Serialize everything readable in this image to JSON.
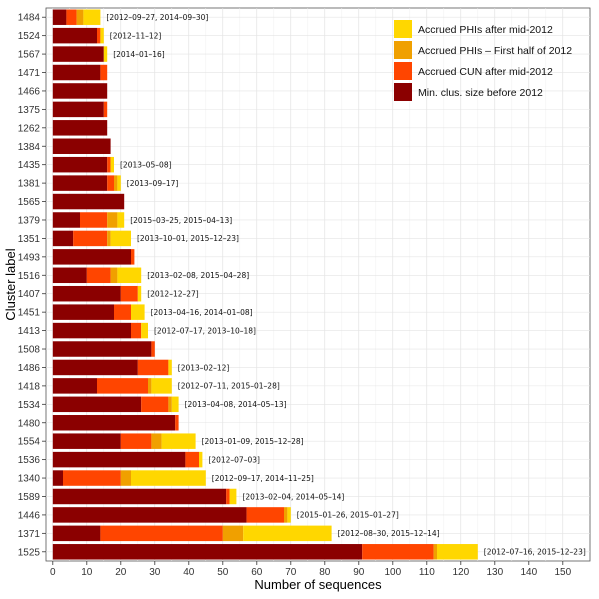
{
  "chart_data": {
    "type": "bar",
    "orientation": "horizontal",
    "stacked": true,
    "xlabel": "Number of sequences",
    "ylabel": "Cluster label",
    "xlim": [
      -2,
      158
    ],
    "xticks": [
      0,
      10,
      20,
      30,
      40,
      50,
      60,
      70,
      80,
      90,
      100,
      110,
      120,
      130,
      140,
      150
    ],
    "grid": true,
    "legend_position": "top-right",
    "series": [
      {
        "name": "Min. clus. size before 2012",
        "color": "#8B0000"
      },
      {
        "name": "Accrued CUN after mid-2012",
        "color": "#FF4500"
      },
      {
        "name": "Accrued PHIs – First half of 2012",
        "color": "#F0A000"
      },
      {
        "name": "Accrued PHIs after mid-2012",
        "color": "#FFD700"
      }
    ],
    "legend_order": [
      3,
      2,
      1,
      0
    ],
    "rows": [
      {
        "label": "1484",
        "values": [
          4,
          3,
          2,
          5
        ],
        "dates": "[2012–09–27, 2014–09–30]"
      },
      {
        "label": "1524",
        "values": [
          13,
          1,
          0,
          1
        ],
        "dates": "[2012–11–12]"
      },
      {
        "label": "1567",
        "values": [
          15,
          0,
          0,
          1
        ],
        "dates": "[2014–01–16]"
      },
      {
        "label": "1471",
        "values": [
          14,
          2,
          0,
          0
        ],
        "dates": ""
      },
      {
        "label": "1466",
        "values": [
          16,
          0,
          0,
          0
        ],
        "dates": ""
      },
      {
        "label": "1375",
        "values": [
          15,
          1,
          0,
          0
        ],
        "dates": ""
      },
      {
        "label": "1262",
        "values": [
          16,
          0,
          0,
          0
        ],
        "dates": ""
      },
      {
        "label": "1384",
        "values": [
          17,
          0,
          0,
          0
        ],
        "dates": ""
      },
      {
        "label": "1435",
        "values": [
          16,
          1,
          0,
          1
        ],
        "dates": "[2013–05–08]"
      },
      {
        "label": "1381",
        "values": [
          16,
          2,
          1,
          1
        ],
        "dates": "[2013–09–17]"
      },
      {
        "label": "1565",
        "values": [
          21,
          0,
          0,
          0
        ],
        "dates": ""
      },
      {
        "label": "1379",
        "values": [
          8,
          8,
          3,
          2
        ],
        "dates": "[2015–03–25, 2015–04–13]"
      },
      {
        "label": "1351",
        "values": [
          6,
          10,
          1,
          6
        ],
        "dates": "[2013–10–01, 2015–12–23]"
      },
      {
        "label": "1493",
        "values": [
          23,
          1,
          0,
          0
        ],
        "dates": ""
      },
      {
        "label": "1516",
        "values": [
          10,
          7,
          2,
          7
        ],
        "dates": "[2013–02–08, 2015–04–28]"
      },
      {
        "label": "1407",
        "values": [
          20,
          5,
          0,
          1
        ],
        "dates": "[2012–12–27]"
      },
      {
        "label": "1451",
        "values": [
          18,
          5,
          0,
          4
        ],
        "dates": "[2013–04–16, 2014–01–08]"
      },
      {
        "label": "1413",
        "values": [
          23,
          3,
          0,
          2
        ],
        "dates": "[2012–07–17, 2013–10–18]"
      },
      {
        "label": "1508",
        "values": [
          29,
          1,
          0,
          0
        ],
        "dates": ""
      },
      {
        "label": "1486",
        "values": [
          25,
          9,
          0,
          1
        ],
        "dates": "[2013–02–12]"
      },
      {
        "label": "1418",
        "values": [
          13,
          15,
          1,
          6
        ],
        "dates": "[2012–07–11, 2015–01–28]"
      },
      {
        "label": "1534",
        "values": [
          26,
          8,
          1,
          2
        ],
        "dates": "[2013–04–08, 2014–05–13]"
      },
      {
        "label": "1480",
        "values": [
          36,
          1,
          0,
          0
        ],
        "dates": ""
      },
      {
        "label": "1554",
        "values": [
          20,
          9,
          3,
          10
        ],
        "dates": "[2013–01–09, 2015–12–28]"
      },
      {
        "label": "1536",
        "values": [
          39,
          4,
          0,
          1
        ],
        "dates": "[2012–07–03]"
      },
      {
        "label": "1340",
        "values": [
          3,
          17,
          3,
          22
        ],
        "dates": "[2012–09–17, 2014–11–25]"
      },
      {
        "label": "1589",
        "values": [
          51,
          1,
          0,
          2
        ],
        "dates": "[2013–02–04, 2014–05–14]"
      },
      {
        "label": "1446",
        "values": [
          57,
          11,
          1,
          1
        ],
        "dates": "[2015–01–26, 2015–01–27]"
      },
      {
        "label": "1371",
        "values": [
          14,
          36,
          6,
          26
        ],
        "dates": "[2012–08–30, 2015–12–14]"
      },
      {
        "label": "1525",
        "values": [
          91,
          21,
          1,
          12
        ],
        "dates": "[2012–07–16, 2015–12–23]"
      }
    ]
  }
}
